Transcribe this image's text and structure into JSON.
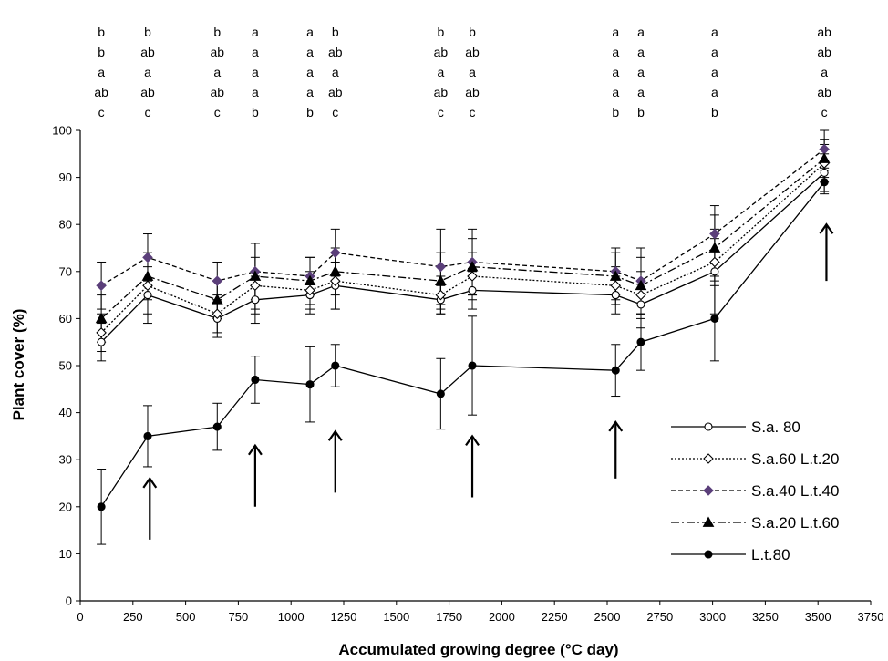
{
  "chart_data": {
    "type": "line",
    "xlabel": "Accumulated growing degree (°C day)",
    "ylabel": "Plant cover (%)",
    "xlim": [
      0,
      3750
    ],
    "ylim": [
      0,
      100
    ],
    "x_ticks": [
      0,
      250,
      500,
      750,
      1000,
      1250,
      1500,
      1750,
      2000,
      2250,
      2500,
      2750,
      3000,
      3250,
      3500,
      3750
    ],
    "y_ticks": [
      0,
      10,
      20,
      30,
      40,
      50,
      60,
      70,
      80,
      90,
      100
    ],
    "grid": false,
    "legend_position": "bottom-right",
    "x": [
      100,
      320,
      650,
      830,
      1090,
      1210,
      1710,
      1860,
      2540,
      2660,
      3010,
      3530
    ],
    "series": [
      {
        "name": "S.a. 80",
        "marker": "open-circle",
        "dash": "solid",
        "color": "#000000",
        "marker_fill": "#ffffff",
        "values": [
          55,
          65,
          60,
          64,
          65,
          67,
          64,
          66,
          65,
          63,
          70,
          91
        ],
        "errors": [
          4,
          6,
          4,
          5,
          4,
          5,
          3,
          4,
          4,
          5,
          9,
          4
        ]
      },
      {
        "name": "S.a.60 L.t.20",
        "marker": "open-diamond",
        "dash": "short-dot",
        "color": "#000000",
        "marker_fill": "#ffffff",
        "values": [
          57,
          67,
          61,
          67,
          66,
          68,
          65,
          69,
          67,
          65,
          72,
          93
        ],
        "errors": [
          4,
          6,
          4,
          6,
          4,
          6,
          4,
          5,
          4,
          5,
          5,
          4
        ]
      },
      {
        "name": "S.a.40 L.t.40",
        "marker": "filled-diamond",
        "dash": "dash",
        "color": "#000000",
        "marker_fill": "#5b3f7a",
        "values": [
          67,
          73,
          68,
          70,
          69,
          74,
          71,
          72,
          70,
          68,
          78,
          96
        ],
        "errors": [
          5,
          5,
          4,
          6,
          4,
          5,
          8,
          7,
          5,
          7,
          6,
          4
        ]
      },
      {
        "name": "S.a.20 L.t.60",
        "marker": "filled-triangle",
        "dash": "dash-dot",
        "color": "#000000",
        "marker_fill": "#000000",
        "values": [
          60,
          69,
          64,
          69,
          68,
          70,
          68,
          71,
          69,
          67,
          75,
          94
        ],
        "errors": [
          5,
          5,
          4,
          7,
          5,
          5,
          6,
          6,
          5,
          6,
          7,
          4
        ]
      },
      {
        "name": "L.t.80",
        "marker": "filled-circle",
        "dash": "solid",
        "color": "#000000",
        "marker_fill": "#000000",
        "values": [
          20,
          35,
          37,
          47,
          46,
          50,
          44,
          50,
          49,
          55,
          60,
          89
        ],
        "errors": [
          8,
          6.5,
          5,
          5,
          8,
          4.5,
          7.5,
          10.5,
          5.5,
          6,
          9,
          2.5
        ]
      }
    ],
    "significance_letters": [
      {
        "x": 100,
        "letters": [
          "b",
          "b",
          "a",
          "ab",
          "c"
        ]
      },
      {
        "x": 320,
        "letters": [
          "b",
          "ab",
          "a",
          "ab",
          "c"
        ]
      },
      {
        "x": 650,
        "letters": [
          "b",
          "ab",
          "a",
          "ab",
          "c"
        ]
      },
      {
        "x": 830,
        "letters": [
          "a",
          "a",
          "a",
          "a",
          "b"
        ]
      },
      {
        "x": 1090,
        "letters": [
          "a",
          "a",
          "a",
          "a",
          "b"
        ]
      },
      {
        "x": 1210,
        "letters": [
          "b",
          "ab",
          "a",
          "ab",
          "c"
        ]
      },
      {
        "x": 1710,
        "letters": [
          "b",
          "ab",
          "a",
          "ab",
          "c"
        ]
      },
      {
        "x": 1860,
        "letters": [
          "b",
          "ab",
          "a",
          "ab",
          "c"
        ]
      },
      {
        "x": 2540,
        "letters": [
          "a",
          "a",
          "a",
          "a",
          "b"
        ]
      },
      {
        "x": 2660,
        "letters": [
          "a",
          "a",
          "a",
          "a",
          "b"
        ]
      },
      {
        "x": 3010,
        "letters": [
          "a",
          "a",
          "a",
          "a",
          "b"
        ]
      },
      {
        "x": 3530,
        "letters": [
          "ab",
          "ab",
          "a",
          "ab",
          "c"
        ]
      }
    ],
    "arrows": [
      {
        "x": 330,
        "y_tail": 13,
        "y_head": 26
      },
      {
        "x": 830,
        "y_tail": 20,
        "y_head": 33
      },
      {
        "x": 1210,
        "y_tail": 23,
        "y_head": 36
      },
      {
        "x": 1860,
        "y_tail": 22,
        "y_head": 35
      },
      {
        "x": 2540,
        "y_tail": 26,
        "y_head": 38
      },
      {
        "x": 3540,
        "y_tail": 68,
        "y_head": 80
      }
    ]
  }
}
